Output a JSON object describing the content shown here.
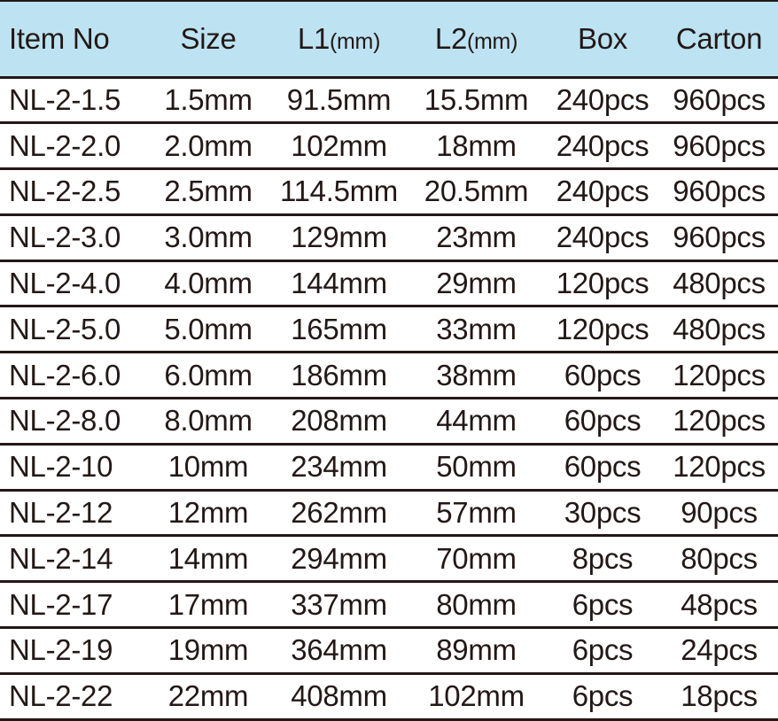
{
  "colors": {
    "header_bg": "#bde3f3",
    "text": "#231815",
    "rule": "#231815"
  },
  "headers": [
    {
      "label": "Item No",
      "unit": ""
    },
    {
      "label": "Size",
      "unit": ""
    },
    {
      "label": "L1",
      "unit": "(mm)"
    },
    {
      "label": "L2",
      "unit": "(mm)"
    },
    {
      "label": "Box",
      "unit": ""
    },
    {
      "label": "Carton",
      "unit": ""
    }
  ],
  "rows": [
    [
      "NL-2-1.5",
      "1.5mm",
      "91.5mm",
      "15.5mm",
      "240pcs",
      "960pcs"
    ],
    [
      "NL-2-2.0",
      "2.0mm",
      "102mm",
      "18mm",
      "240pcs",
      "960pcs"
    ],
    [
      "NL-2-2.5",
      "2.5mm",
      "114.5mm",
      "20.5mm",
      "240pcs",
      "960pcs"
    ],
    [
      "NL-2-3.0",
      "3.0mm",
      "129mm",
      "23mm",
      "240pcs",
      "960pcs"
    ],
    [
      "NL-2-4.0",
      "4.0mm",
      "144mm",
      "29mm",
      "120pcs",
      "480pcs"
    ],
    [
      "NL-2-5.0",
      "5.0mm",
      "165mm",
      "33mm",
      "120pcs",
      "480pcs"
    ],
    [
      "NL-2-6.0",
      "6.0mm",
      "186mm",
      "38mm",
      "60pcs",
      "120pcs"
    ],
    [
      "NL-2-8.0",
      "8.0mm",
      "208mm",
      "44mm",
      "60pcs",
      "120pcs"
    ],
    [
      "NL-2-10",
      "10mm",
      "234mm",
      "50mm",
      "60pcs",
      "120pcs"
    ],
    [
      "NL-2-12",
      "12mm",
      "262mm",
      "57mm",
      "30pcs",
      "90pcs"
    ],
    [
      "NL-2-14",
      "14mm",
      "294mm",
      "70mm",
      "8pcs",
      "80pcs"
    ],
    [
      "NL-2-17",
      "17mm",
      "337mm",
      "80mm",
      "6pcs",
      "48pcs"
    ],
    [
      "NL-2-19",
      "19mm",
      "364mm",
      "89mm",
      "6pcs",
      "24pcs"
    ],
    [
      "NL-2-22",
      "22mm",
      "408mm",
      "102mm",
      "6pcs",
      "18pcs"
    ]
  ]
}
